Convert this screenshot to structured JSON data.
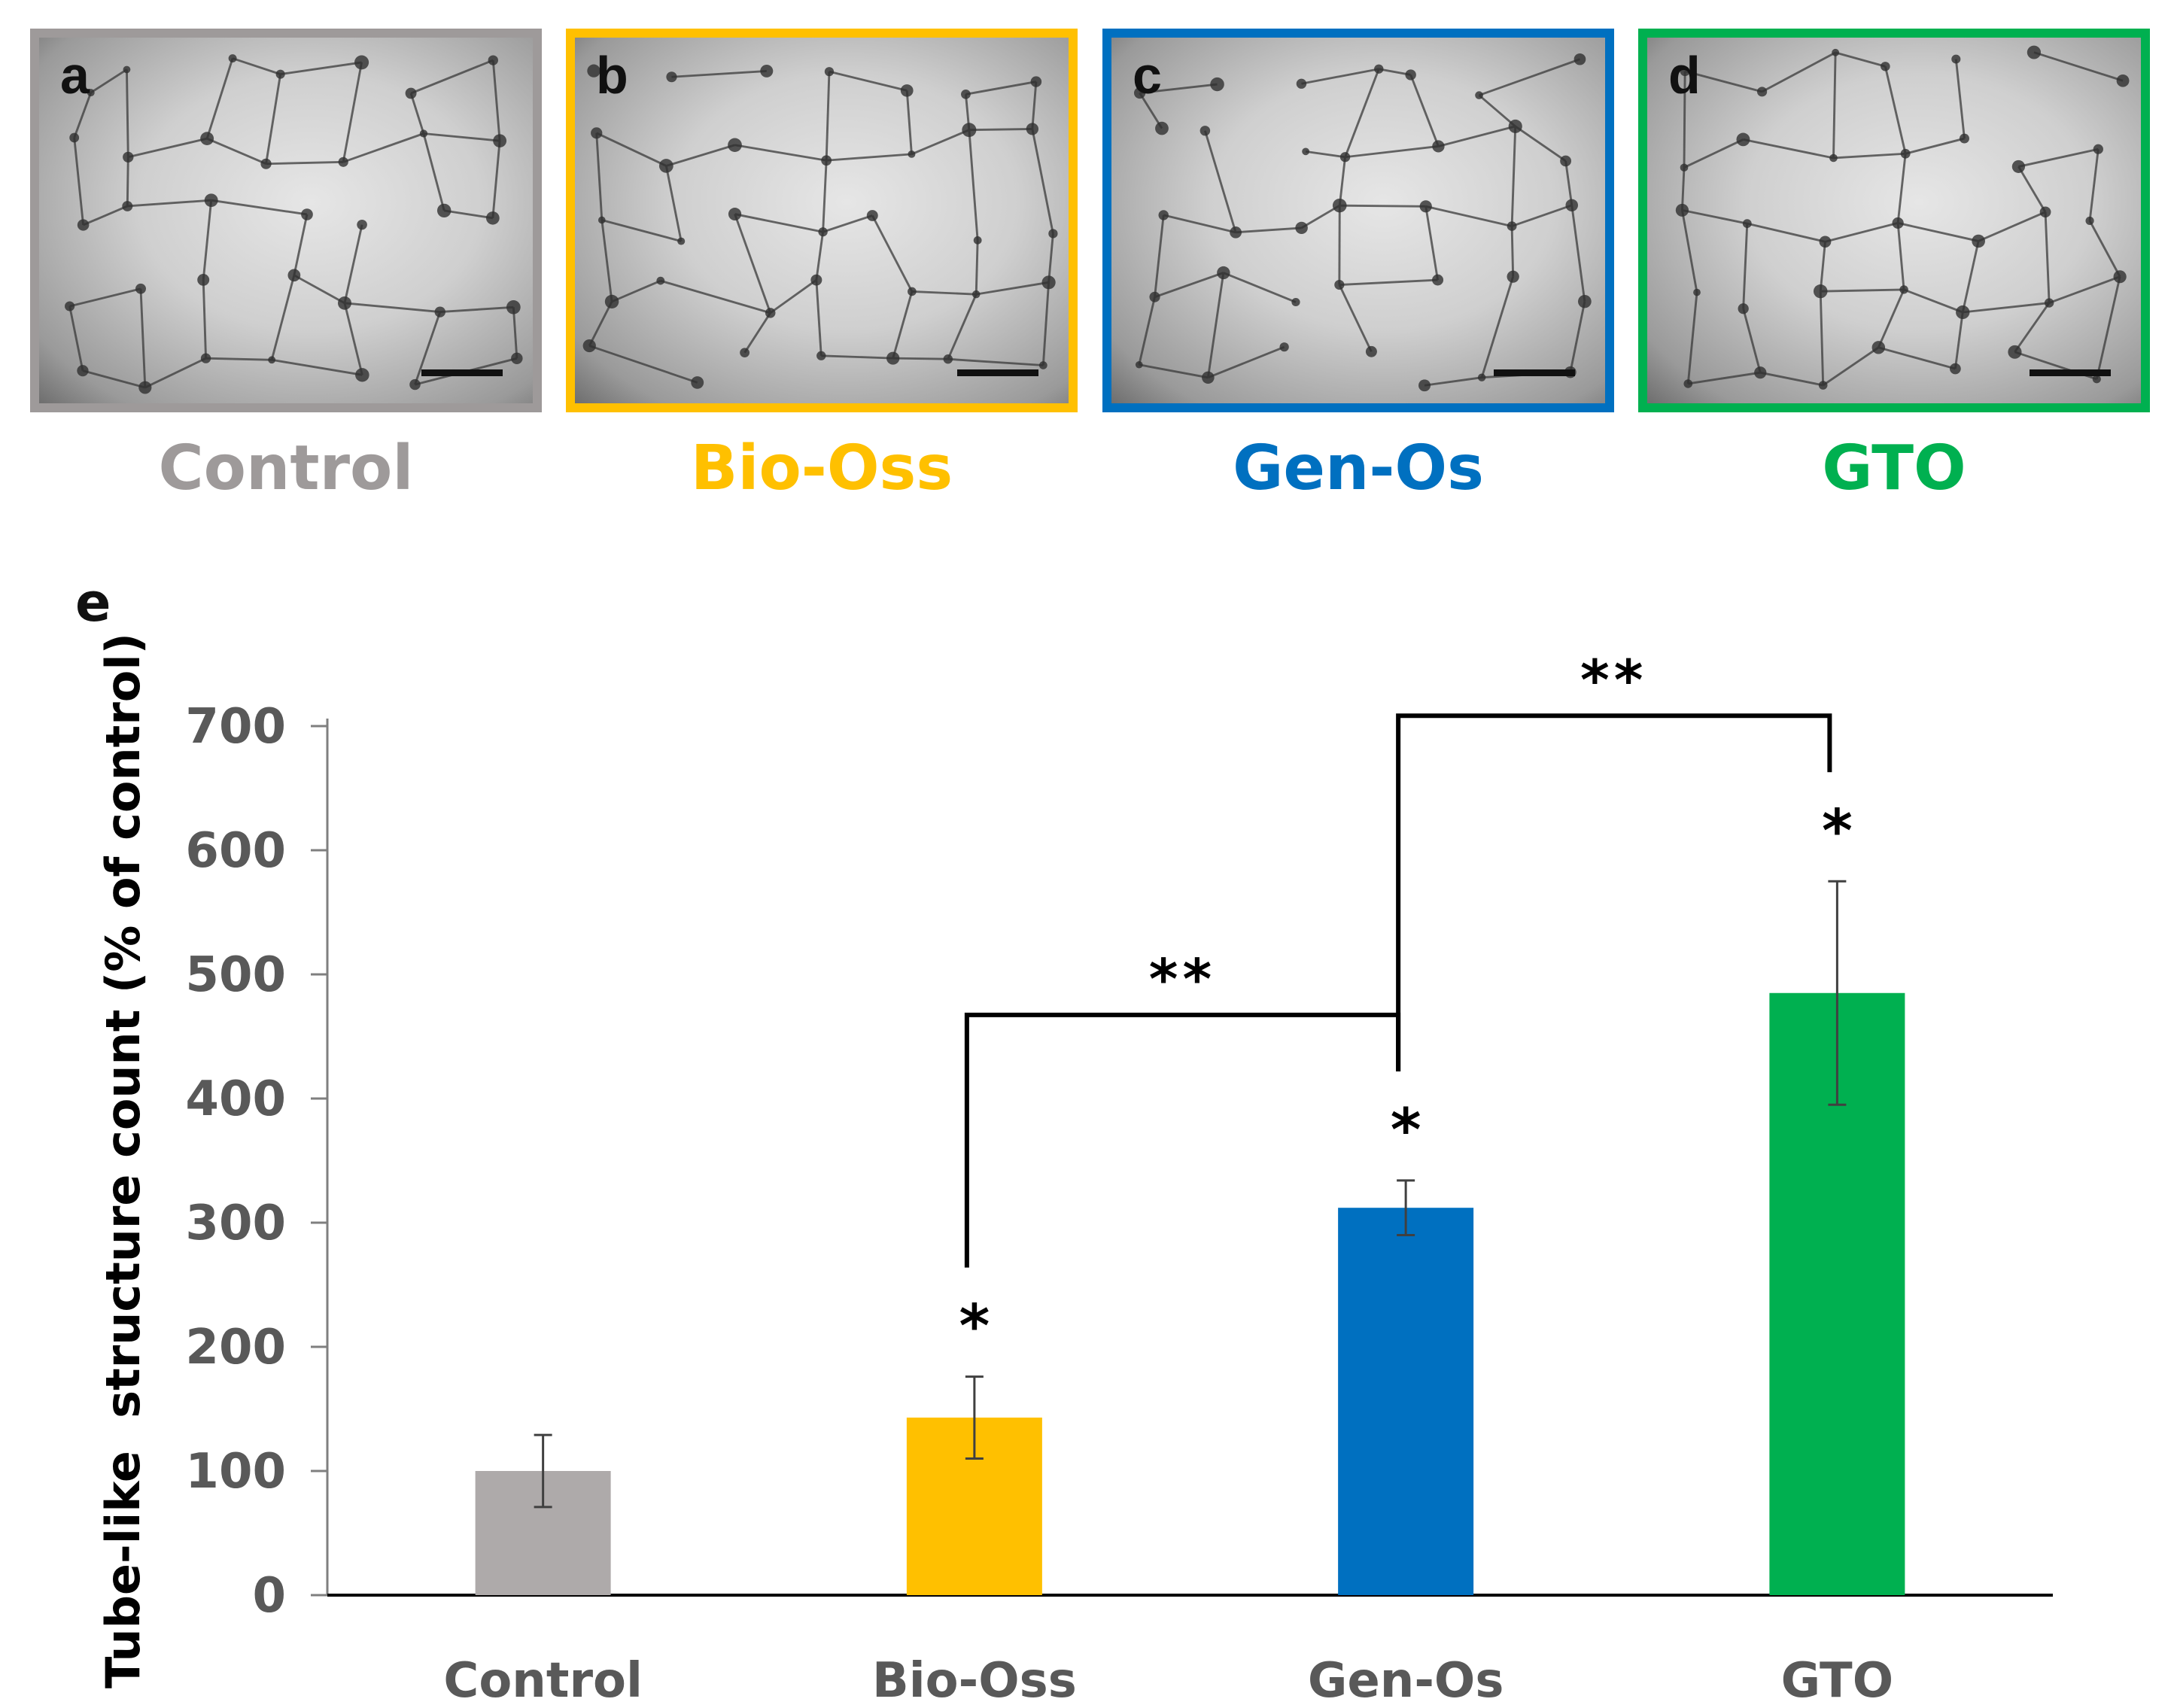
{
  "panels": [
    {
      "letter": "a",
      "label": "Control",
      "color": "#9E9A9A"
    },
    {
      "letter": "b",
      "label": "Bio-Oss",
      "color": "#FFC000"
    },
    {
      "letter": "c",
      "label": "Gen-Os",
      "color": "#0070C0"
    },
    {
      "letter": "d",
      "label": "GTO",
      "color": "#00B050"
    }
  ],
  "chart_panel_letter": "e",
  "chart_data": {
    "type": "bar",
    "title": "",
    "xlabel": "",
    "ylabel": "Tube-like  structure count (% of control)",
    "categories": [
      "Control",
      "Bio-Oss",
      "Gen-Os",
      "GTO"
    ],
    "values": [
      100,
      143,
      312,
      485
    ],
    "errors": [
      29,
      33,
      22,
      90
    ],
    "colors": [
      "#AEAAAA",
      "#FFC000",
      "#0070C0",
      "#00B050"
    ],
    "ylim": [
      0,
      700
    ],
    "yticks": [
      0,
      100,
      200,
      300,
      400,
      500,
      600,
      700
    ],
    "significance_marks": [
      "*",
      "*",
      "*"
    ],
    "significance_mark_categories": [
      "Bio-Oss",
      "Gen-Os",
      "GTO"
    ],
    "brackets": [
      {
        "from": "Bio-Oss",
        "to": "Gen-Os",
        "label": "**"
      },
      {
        "from": "Gen-Os",
        "to": "GTO",
        "label": "**"
      }
    ]
  }
}
